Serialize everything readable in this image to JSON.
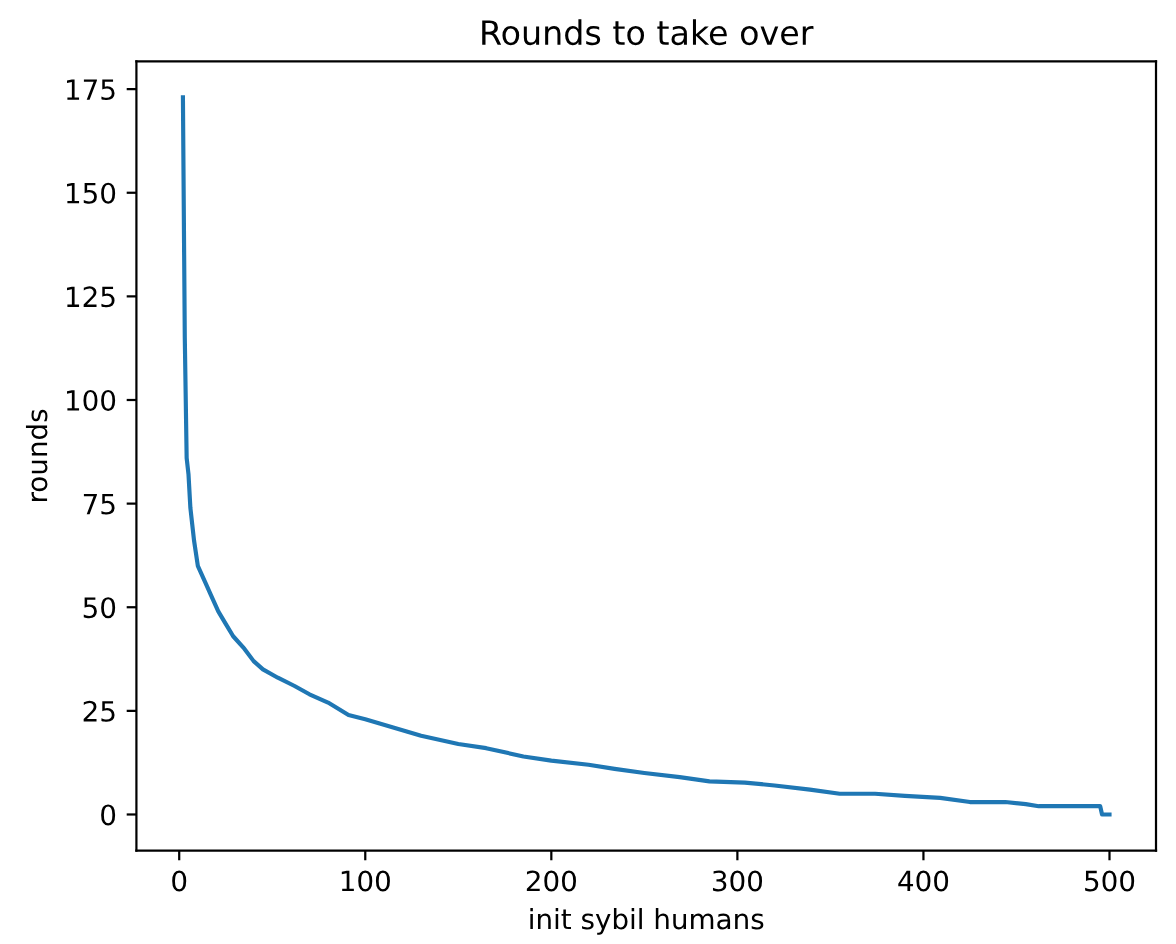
{
  "chart_data": {
    "type": "line",
    "title": "Rounds to take over",
    "xlabel": "init sybil humans",
    "ylabel": "rounds",
    "xlim": [
      -23,
      525
    ],
    "ylim": [
      -8.7,
      181.7
    ],
    "xticks": [
      0,
      100,
      200,
      300,
      400,
      500
    ],
    "yticks": [
      0,
      25,
      50,
      75,
      100,
      125,
      150,
      175
    ],
    "grid": false,
    "legend": false,
    "series": [
      {
        "color": "#1f77b4",
        "x": [
          2,
          3,
          4,
          5,
          6,
          8,
          10,
          14,
          17,
          21,
          25,
          29,
          35,
          40,
          45,
          53,
          62,
          70,
          80,
          91,
          100,
          115,
          130,
          150,
          165,
          185,
          200,
          220,
          234,
          250,
          269,
          285,
          304,
          320,
          339,
          355,
          374,
          390,
          409,
          425,
          444,
          455,
          462,
          480,
          495,
          496,
          500
        ],
        "values": [
          173,
          115,
          86,
          82,
          74,
          66,
          60,
          56,
          53,
          49,
          46,
          43,
          40,
          37,
          35,
          33,
          31,
          29,
          27,
          24,
          23,
          21,
          19,
          17,
          16,
          14,
          13,
          12,
          11,
          10,
          9,
          8,
          7.7,
          7,
          6,
          5,
          5,
          4.5,
          4,
          3,
          3,
          2.5,
          2,
          2,
          2,
          0,
          0
        ]
      }
    ]
  }
}
